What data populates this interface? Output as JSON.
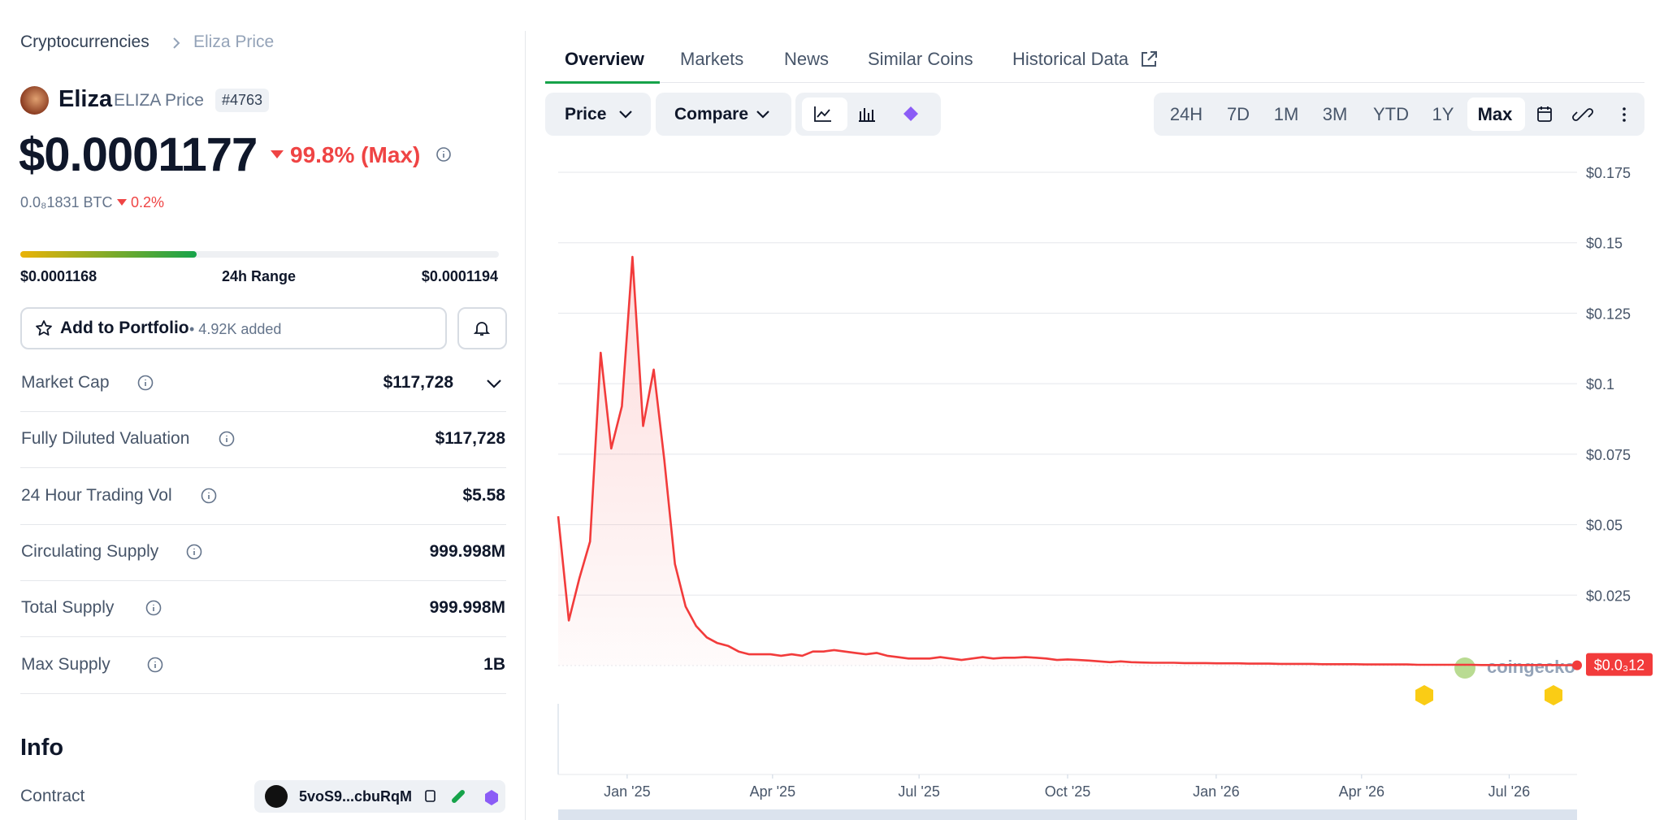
{
  "breadcrumb": [
    "Cryptocurrencies",
    "Eliza Price"
  ],
  "coin": {
    "name": "Eliza",
    "symbol_label": "ELIZA Price",
    "rank": "#4763",
    "price": "$0.0001177",
    "change": "99.8% (Max)",
    "btc_price": "0.0₈1831 BTC",
    "btc_change": "0.2%"
  },
  "range": {
    "low": "$0.0001168",
    "label": "24h Range",
    "high": "$0.0001194"
  },
  "portfolio": {
    "button": "Add to Portfolio",
    "added": "• 4.92K added"
  },
  "stats": [
    {
      "label": "Market Cap",
      "value": "$117,728"
    },
    {
      "label": "Fully Diluted Valuation",
      "value": "$117,728"
    },
    {
      "label": "24 Hour Trading Vol",
      "value": "$5.58"
    },
    {
      "label": "Circulating Supply",
      "value": "999.998M"
    },
    {
      "label": "Total Supply",
      "value": "999.998M"
    },
    {
      "label": "Max Supply",
      "value": "1B"
    }
  ],
  "info": {
    "title": "Info",
    "contract_label": "Contract",
    "contract": "5voS9...cbuRqM"
  },
  "tabs": [
    "Overview",
    "Markets",
    "News",
    "Similar Coins",
    "Historical Data"
  ],
  "controls": {
    "price": "Price",
    "compare": "Compare",
    "timeframes": [
      "24H",
      "7D",
      "1M",
      "3M",
      "YTD",
      "1Y",
      "Max"
    ]
  },
  "chart_data": {
    "type": "line",
    "color": "#f23b3b",
    "watermark": "coingecko",
    "last_value_label": "$0.0₃12",
    "values": [
      0.053,
      0.016,
      0.031,
      0.044,
      0.111,
      0.077,
      0.092,
      0.145,
      0.085,
      0.105,
      0.073,
      0.036,
      0.021,
      0.014,
      0.01,
      0.008,
      0.007,
      0.005,
      0.004,
      0.004,
      0.004,
      0.0035,
      0.004,
      0.0035,
      0.005,
      0.005,
      0.0055,
      0.005,
      0.0045,
      0.004,
      0.0045,
      0.0035,
      0.003,
      0.0025,
      0.0025,
      0.0025,
      0.003,
      0.0025,
      0.002,
      0.0025,
      0.003,
      0.0025,
      0.0028,
      0.0028,
      0.003,
      0.0028,
      0.0025,
      0.002,
      0.0022,
      0.002,
      0.0018,
      0.0015,
      0.0012,
      0.0015,
      0.0012,
      0.0011,
      0.001,
      0.001,
      0.001,
      0.0009,
      0.0009,
      0.0009,
      0.0008,
      0.0008,
      0.0008,
      0.0007,
      0.0007,
      0.0007,
      0.0006,
      0.0006,
      0.0006,
      0.0006,
      0.0005,
      0.0005,
      0.0005,
      0.0005,
      0.0004,
      0.0004,
      0.0004,
      0.0004,
      0.0004,
      0.0003,
      0.0003,
      0.0003,
      0.0003,
      0.0003,
      0.0003,
      0.0002,
      0.0002,
      0.0002,
      0.0002,
      0.0002,
      0.0002,
      0.0002,
      0.0002,
      0.00015,
      0.00012
    ],
    "xlim": [
      0,
      96
    ],
    "xticks": [
      {
        "value": 6.5,
        "label": "Jan '25"
      },
      {
        "value": 20.2,
        "label": "Apr '25"
      },
      {
        "value": 34,
        "label": "Jul '25"
      },
      {
        "value": 48,
        "label": "Oct '25"
      },
      {
        "value": 62,
        "label": "Jan '26"
      },
      {
        "value": 75.7,
        "label": "Apr '26"
      },
      {
        "value": 89.6,
        "label": "Jul '26"
      }
    ],
    "ylim": [
      0,
      0.175
    ],
    "yticks": [
      {
        "value": 0.025,
        "label": "$0.025"
      },
      {
        "value": 0.05,
        "label": "$0.05"
      },
      {
        "value": 0.075,
        "label": "$0.075"
      },
      {
        "value": 0.1,
        "label": "$0.1"
      },
      {
        "value": 0.125,
        "label": "$0.125"
      },
      {
        "value": 0.15,
        "label": "$0.15"
      },
      {
        "value": 0.175,
        "label": "$0.175"
      }
    ],
    "grid": true
  }
}
